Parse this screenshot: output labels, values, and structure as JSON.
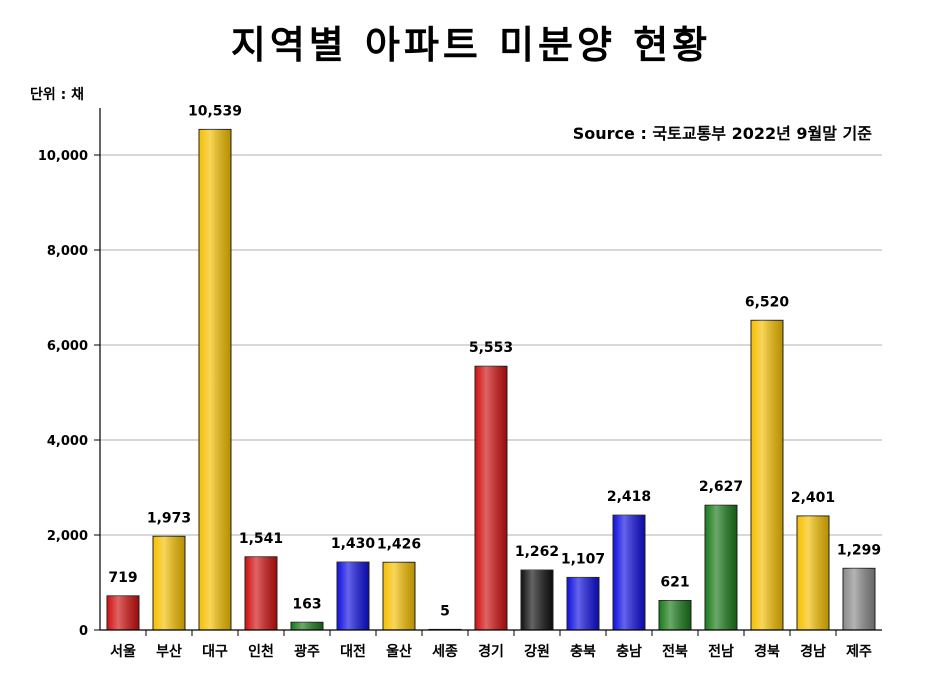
{
  "chart_data": {
    "type": "bar",
    "title": "지역별 아파트 미분양 현황",
    "unit_label": "단위 : 채",
    "source": "Source :  국토교통부   2022년 9월말 기준",
    "ylim": [
      0,
      11000
    ],
    "yticks": [
      0,
      2000,
      4000,
      6000,
      8000,
      10000
    ],
    "ytick_labels": [
      "0",
      "2,000",
      "4,000",
      "6,000",
      "8,000",
      "10,000"
    ],
    "grid": true,
    "categories": [
      "서울",
      "부산",
      "대구",
      "인천",
      "광주",
      "대전",
      "울산",
      "세종",
      "경기",
      "강원",
      "충북",
      "충남",
      "전북",
      "전남",
      "경북",
      "경남",
      "제주"
    ],
    "values": [
      719,
      1973,
      10539,
      1541,
      163,
      1430,
      1426,
      5,
      5553,
      1262,
      1107,
      2418,
      621,
      2627,
      6520,
      2401,
      1299
    ],
    "value_labels": [
      "719",
      "1,973",
      "10,539",
      "1,541",
      "163",
      "1,430",
      "1,426",
      "5",
      "5,553",
      "1,262",
      "1,107",
      "2,418",
      "621",
      "2,627",
      "6,520",
      "2,401",
      "1,299"
    ],
    "bar_colors": [
      "#d01010",
      "#f5c000",
      "#f5c000",
      "#d01010",
      "#1a7a1a",
      "#1010e0",
      "#f5c000",
      "#d01010",
      "#d01010",
      "#111111",
      "#1010e0",
      "#1010e0",
      "#1a7a1a",
      "#1a7a1a",
      "#f5c000",
      "#f5c000",
      "#8a8a8a"
    ]
  }
}
